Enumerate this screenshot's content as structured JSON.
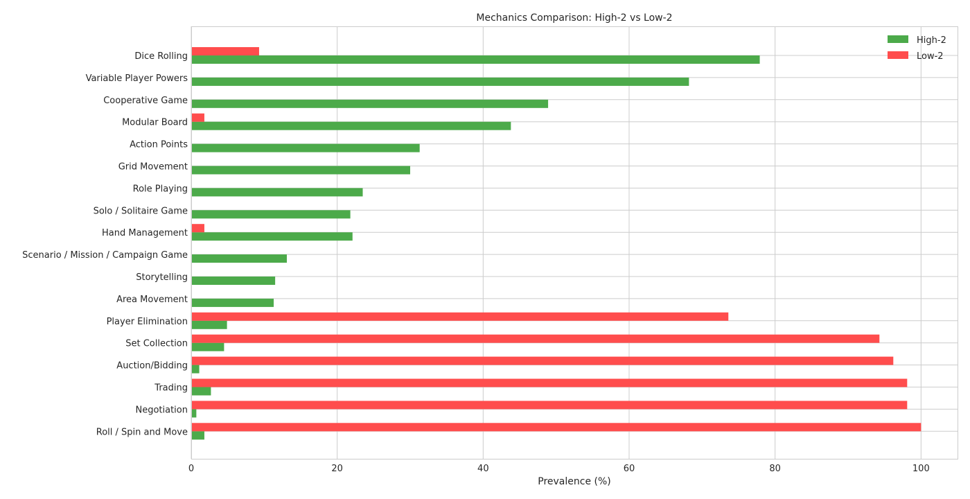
{
  "chart_data": {
    "type": "bar",
    "orientation": "horizontal",
    "title": "Mechanics Comparison: High-2 vs Low-2",
    "xlabel": "Prevalence (%)",
    "ylabel": "",
    "xlim": [
      0,
      105
    ],
    "xticks": [
      0,
      20,
      40,
      60,
      80,
      100
    ],
    "xtick_labels": [
      "0",
      "20",
      "40",
      "60",
      "80",
      "100"
    ],
    "grid": true,
    "legend_position": "top-right",
    "categories": [
      "Dice Rolling",
      "Variable Player Powers",
      "Cooperative Game",
      "Modular Board",
      "Action Points",
      "Grid Movement",
      "Role Playing",
      "Solo / Solitaire Game",
      "Hand Management",
      "Scenario / Mission / Campaign Game",
      "Storytelling",
      "Area Movement",
      "Player Elimination",
      "Set Collection",
      "Auction/Bidding",
      "Trading",
      "Negotiation",
      "Roll / Spin and Move"
    ],
    "series": [
      {
        "name": "High-2",
        "color": "#4caa4a",
        "values": [
          77.9,
          68.2,
          48.9,
          43.8,
          31.3,
          30.0,
          23.5,
          21.8,
          22.1,
          13.1,
          11.5,
          11.3,
          4.9,
          4.5,
          1.1,
          2.7,
          0.7,
          1.8
        ]
      },
      {
        "name": "Low-2",
        "color": "#ff4d4d",
        "values": [
          9.3,
          0,
          0,
          1.8,
          0,
          0,
          0,
          0,
          1.8,
          0,
          0,
          0,
          73.6,
          94.3,
          96.2,
          98.1,
          98.1,
          100
        ]
      }
    ]
  }
}
